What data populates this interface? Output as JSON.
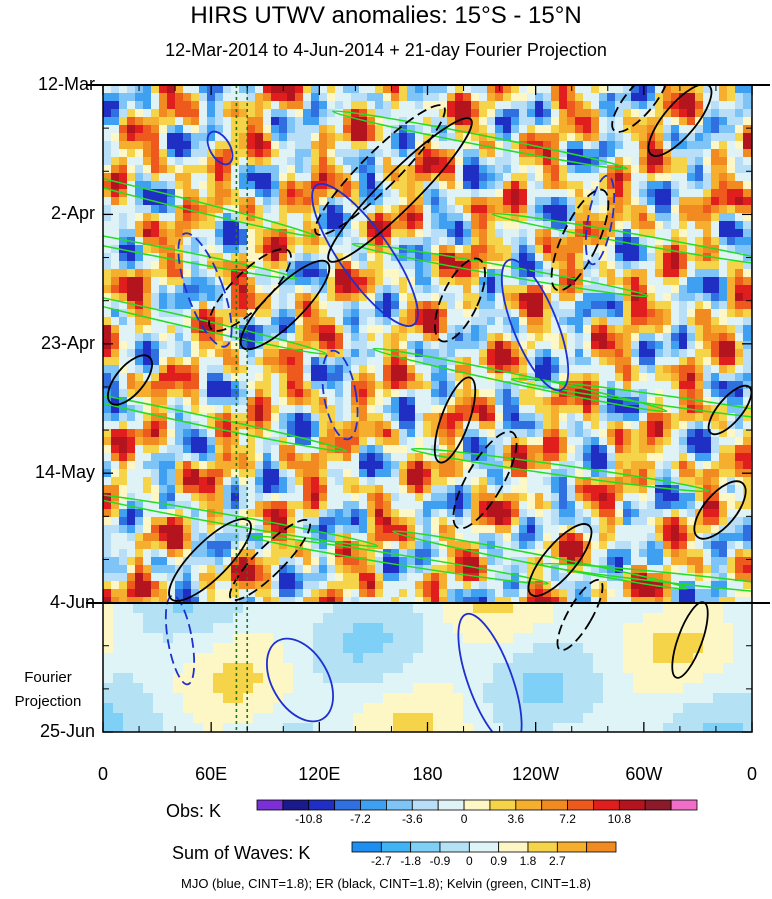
{
  "title": "HIRS UTWV anomalies: 15°S - 15°N",
  "subtitle": "12-Mar-2014 to 4-Jun-2014 + 21-day Fourier Projection",
  "chart_data": {
    "type": "heatmap",
    "title": "HIRS UTWV anomalies: 15°S - 15°N",
    "subtitle": "12-Mar-2014 to 4-Jun-2014 + 21-day Fourier Projection",
    "x_axis": {
      "ticks": [
        "0",
        "60E",
        "120E",
        "180",
        "120W",
        "60W",
        "0"
      ],
      "range": [
        0,
        360
      ]
    },
    "y_axis": {
      "ticks": [
        "12-Mar",
        "2-Apr",
        "23-Apr",
        "14-May",
        "4-Jun",
        "25-Jun"
      ],
      "reversed": true
    },
    "projection_start": "4-Jun",
    "projection_label": [
      "Fourier",
      "Projection"
    ],
    "obs_colorbar": {
      "title": "Obs: K",
      "tick_labels": [
        "-10.8",
        "-7.2",
        "-3.6",
        "0",
        "3.6",
        "7.2",
        "10.8"
      ],
      "colors": [
        "#7b2fd6",
        "#1a1a8c",
        "#1f2fc4",
        "#2f6fe0",
        "#3f9ff0",
        "#7fc4f6",
        "#b8def8",
        "#dff2f6",
        "#fdf7c6",
        "#f6d44a",
        "#f5ae2d",
        "#f28a22",
        "#ee5a1e",
        "#e01e1e",
        "#b4141e",
        "#8c1a2a",
        "#f06ec8"
      ]
    },
    "waves_colorbar": {
      "title": "Sum of Waves: K",
      "tick_labels": [
        "-2.7",
        "-1.8",
        "-0.9",
        "0",
        "0.9",
        "1.8",
        "2.7"
      ],
      "colors": [
        "#1e8ff0",
        "#3fb4f4",
        "#7fd0f6",
        "#b4e2f4",
        "#dff4f6",
        "#fdf7c6",
        "#f6d44a",
        "#f5ae2d",
        "#f28a22"
      ]
    },
    "series": [
      {
        "name": "MJO",
        "color": "#1f2fd0",
        "cint": 1.8
      },
      {
        "name": "ER",
        "color": "#000000",
        "cint": 1.8
      },
      {
        "name": "Kelvin",
        "color": "#22dd22",
        "cint": 1.8
      }
    ],
    "reference_lines_x": [
      74,
      80
    ]
  },
  "footnote": "MJO (blue, CINT=1.8); ER (black, CINT=1.8); Kelvin (green, CINT=1.8)"
}
